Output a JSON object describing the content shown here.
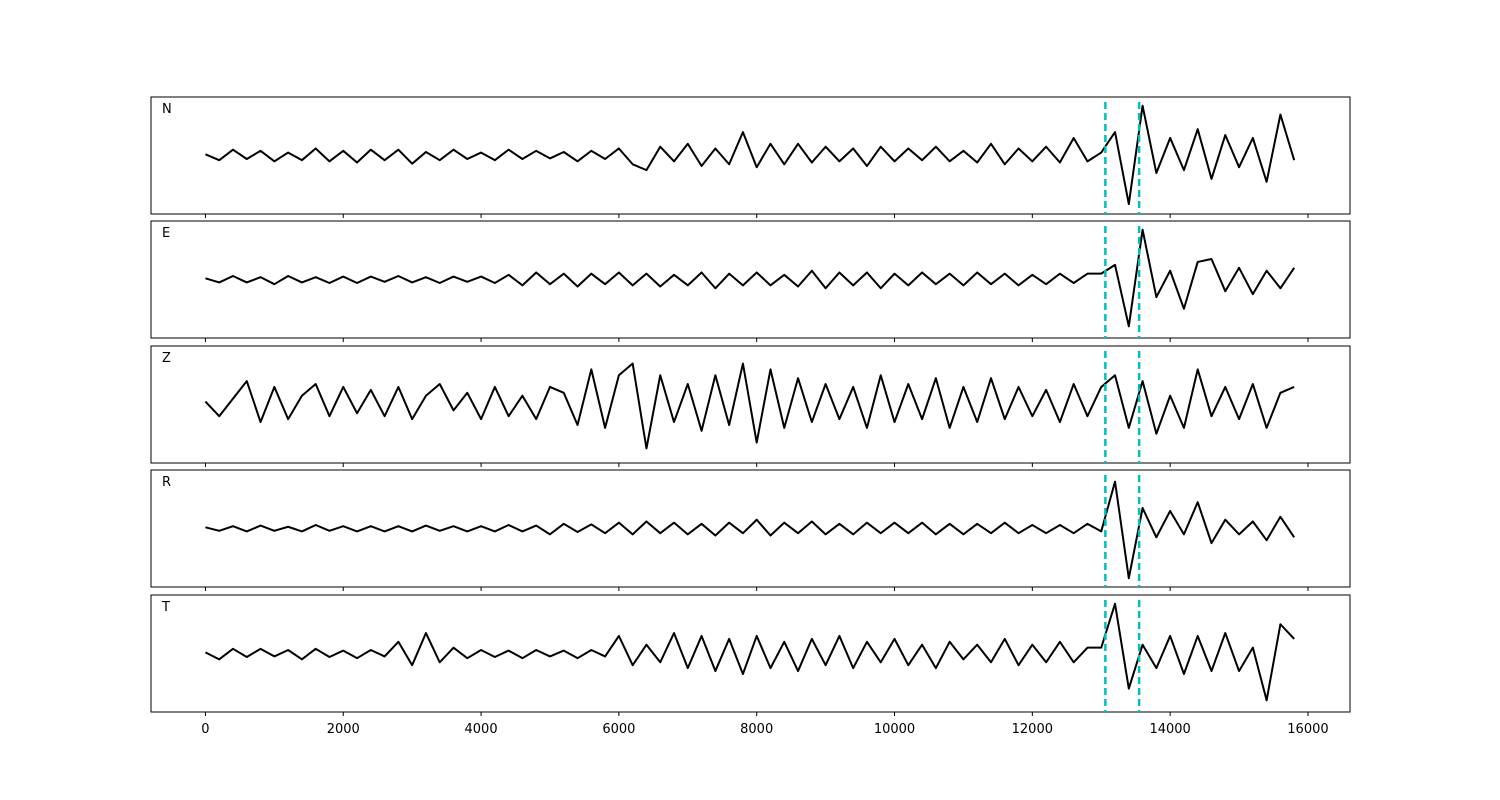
{
  "chart_data": {
    "type": "line",
    "xlim": [
      -790,
      16610
    ],
    "ylim": [
      -1,
      1
    ],
    "xticks": [
      0,
      2000,
      4000,
      6000,
      8000,
      10000,
      12000,
      14000,
      16000
    ],
    "vlines": [
      13060,
      13550
    ],
    "vline_color": "#00bfbf",
    "x": [
      0,
      200,
      400,
      600,
      800,
      1000,
      1200,
      1400,
      1600,
      1800,
      2000,
      2200,
      2400,
      2600,
      2800,
      3000,
      3200,
      3400,
      3600,
      3800,
      4000,
      4200,
      4400,
      4600,
      4800,
      5000,
      5200,
      5400,
      5600,
      5800,
      6000,
      6200,
      6400,
      6600,
      6800,
      7000,
      7200,
      7400,
      7600,
      7800,
      8000,
      8200,
      8400,
      8600,
      8800,
      9000,
      9200,
      9400,
      9600,
      9800,
      10000,
      10200,
      10400,
      10600,
      10800,
      11000,
      11200,
      11400,
      11600,
      11800,
      12000,
      12200,
      12400,
      12600,
      12800,
      13000,
      13200,
      13400,
      13600,
      13800,
      14000,
      14200,
      14400,
      14600,
      14800,
      15000,
      15200,
      15400,
      15600,
      15800
    ],
    "series": [
      {
        "name": "N",
        "color": "#000000",
        "values": [
          0.02,
          -0.08,
          0.1,
          -0.06,
          0.08,
          -0.1,
          0.05,
          -0.08,
          0.12,
          -0.1,
          0.08,
          -0.12,
          0.1,
          -0.08,
          0.1,
          -0.14,
          0.06,
          -0.08,
          0.1,
          -0.06,
          0.05,
          -0.08,
          0.1,
          -0.06,
          0.08,
          -0.05,
          0.06,
          -0.1,
          0.08,
          -0.06,
          0.12,
          -0.15,
          -0.25,
          0.15,
          -0.1,
          0.2,
          -0.18,
          0.12,
          -0.15,
          0.4,
          -0.2,
          0.2,
          -0.15,
          0.2,
          -0.12,
          0.15,
          -0.1,
          0.12,
          -0.18,
          0.15,
          -0.1,
          0.12,
          -0.08,
          0.15,
          -0.1,
          0.08,
          -0.12,
          0.2,
          -0.15,
          0.12,
          -0.1,
          0.15,
          -0.12,
          0.3,
          -0.1,
          0.05,
          0.4,
          -0.83,
          0.85,
          -0.3,
          0.3,
          -0.25,
          0.45,
          -0.4,
          0.35,
          -0.2,
          0.3,
          -0.45,
          0.7,
          -0.08
        ]
      },
      {
        "name": "E",
        "color": "#000000",
        "values": [
          0.02,
          -0.05,
          0.06,
          -0.05,
          0.04,
          -0.08,
          0.06,
          -0.05,
          0.04,
          -0.06,
          0.05,
          -0.06,
          0.05,
          -0.04,
          0.06,
          -0.05,
          0.04,
          -0.06,
          0.05,
          -0.04,
          0.05,
          -0.06,
          0.08,
          -0.1,
          0.12,
          -0.08,
          0.1,
          -0.12,
          0.1,
          -0.08,
          0.12,
          -0.1,
          0.1,
          -0.12,
          0.08,
          -0.1,
          0.12,
          -0.15,
          0.1,
          -0.1,
          0.12,
          -0.1,
          0.08,
          -0.12,
          0.15,
          -0.15,
          0.12,
          -0.1,
          0.12,
          -0.15,
          0.1,
          -0.1,
          0.12,
          -0.08,
          0.1,
          -0.1,
          0.12,
          -0.08,
          0.1,
          -0.1,
          0.08,
          -0.08,
          0.1,
          -0.06,
          0.1,
          0.1,
          0.25,
          -0.8,
          0.85,
          -0.3,
          0.15,
          -0.5,
          0.3,
          0.35,
          -0.2,
          0.2,
          -0.25,
          0.15,
          -0.15,
          0.2
        ]
      },
      {
        "name": "Z",
        "color": "#000000",
        "values": [
          0.05,
          -0.2,
          0.1,
          0.4,
          -0.3,
          0.3,
          -0.25,
          0.15,
          0.35,
          -0.2,
          0.3,
          -0.15,
          0.25,
          -0.2,
          0.3,
          -0.25,
          0.15,
          0.35,
          -0.1,
          0.2,
          -0.25,
          0.3,
          -0.2,
          0.15,
          -0.25,
          0.3,
          0.2,
          -0.35,
          0.6,
          -0.4,
          0.5,
          0.7,
          -0.75,
          0.5,
          -0.3,
          0.35,
          -0.45,
          0.5,
          -0.35,
          0.7,
          -0.65,
          0.6,
          -0.4,
          0.45,
          -0.3,
          0.35,
          -0.25,
          0.3,
          -0.4,
          0.5,
          -0.3,
          0.35,
          -0.25,
          0.45,
          -0.4,
          0.3,
          -0.3,
          0.45,
          -0.25,
          0.3,
          -0.2,
          0.25,
          -0.3,
          0.35,
          -0.2,
          0.3,
          0.5,
          -0.4,
          0.4,
          -0.5,
          0.15,
          -0.4,
          0.6,
          -0.2,
          0.3,
          -0.25,
          0.35,
          -0.4,
          0.2,
          0.3
        ]
      },
      {
        "name": "R",
        "color": "#000000",
        "values": [
          0.02,
          -0.04,
          0.04,
          -0.05,
          0.05,
          -0.04,
          0.03,
          -0.05,
          0.06,
          -0.04,
          0.04,
          -0.05,
          0.04,
          -0.05,
          0.04,
          -0.05,
          0.05,
          -0.04,
          0.04,
          -0.05,
          0.04,
          -0.05,
          0.06,
          -0.05,
          0.05,
          -0.1,
          0.08,
          -0.06,
          0.07,
          -0.08,
          0.1,
          -0.1,
          0.12,
          -0.08,
          0.1,
          -0.1,
          0.08,
          -0.12,
          0.1,
          -0.08,
          0.15,
          -0.12,
          0.1,
          -0.08,
          0.12,
          -0.1,
          0.08,
          -0.1,
          0.1,
          -0.08,
          0.1,
          -0.08,
          0.1,
          -0.1,
          0.08,
          -0.1,
          0.08,
          -0.08,
          0.1,
          -0.08,
          0.06,
          -0.08,
          0.06,
          -0.08,
          0.08,
          -0.05,
          0.8,
          -0.85,
          0.35,
          -0.15,
          0.3,
          -0.1,
          0.45,
          -0.25,
          0.15,
          -0.1,
          0.12,
          -0.2,
          0.2,
          -0.15
        ]
      },
      {
        "name": "T",
        "color": "#000000",
        "values": [
          0.02,
          -0.1,
          0.08,
          -0.06,
          0.08,
          -0.05,
          0.06,
          -0.1,
          0.08,
          -0.06,
          0.05,
          -0.08,
          0.06,
          -0.05,
          0.2,
          -0.2,
          0.35,
          -0.15,
          0.1,
          -0.08,
          0.06,
          -0.06,
          0.05,
          -0.08,
          0.06,
          -0.05,
          0.05,
          -0.08,
          0.06,
          -0.05,
          0.3,
          -0.2,
          0.15,
          -0.15,
          0.35,
          -0.25,
          0.3,
          -0.3,
          0.25,
          -0.35,
          0.3,
          -0.25,
          0.2,
          -0.3,
          0.25,
          -0.2,
          0.3,
          -0.25,
          0.2,
          -0.15,
          0.25,
          -0.2,
          0.15,
          -0.25,
          0.2,
          -0.1,
          0.15,
          -0.15,
          0.25,
          -0.2,
          0.15,
          -0.15,
          0.2,
          -0.15,
          0.1,
          0.1,
          0.85,
          -0.6,
          0.15,
          -0.25,
          0.3,
          -0.35,
          0.3,
          -0.3,
          0.35,
          -0.3,
          0.1,
          -0.8,
          0.5,
          0.25
        ]
      }
    ]
  }
}
